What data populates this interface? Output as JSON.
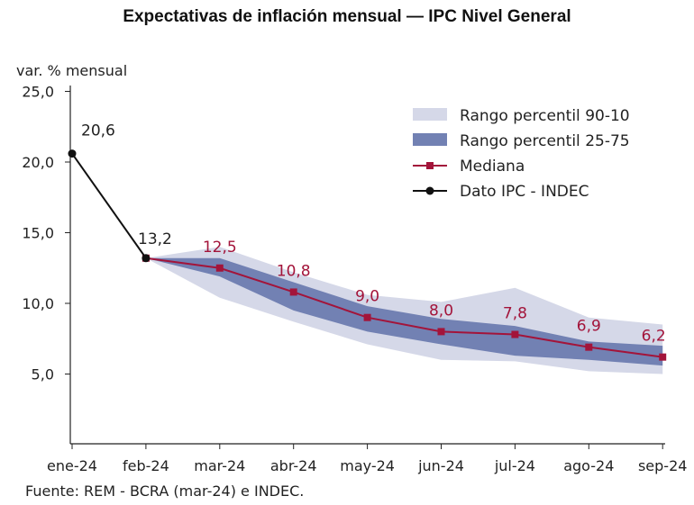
{
  "chart_data": {
    "type": "line",
    "title": "Expectativas de inflación mensual — IPC Nivel General",
    "ylabel": "var. % mensual",
    "xlabel": "",
    "source": "Fuente: REM - BCRA (mar-24) e INDEC.",
    "ylim": [
      0,
      25
    ],
    "yticks": [
      "5,0",
      "10,0",
      "15,0",
      "20,0",
      "25,0"
    ],
    "ytick_values": [
      5,
      10,
      15,
      20,
      25
    ],
    "categories": [
      "ene-24",
      "feb-24",
      "mar-24",
      "abr-24",
      "may-24",
      "jun-24",
      "jul-24",
      "ago-24",
      "sep-24"
    ],
    "grid": false,
    "legend_position": "top-right",
    "colors": {
      "band_90_10": "#d5d8e8",
      "band_25_75": "#7281b3",
      "mediana": "#a3143a",
      "dato": "#111111"
    },
    "series": [
      {
        "name": "Rango percentil 90-10",
        "kind": "band",
        "low": [
          null,
          13.2,
          10.4,
          8.7,
          7.1,
          6.0,
          5.9,
          5.2,
          5.0
        ],
        "high": [
          null,
          13.2,
          14.0,
          12.2,
          10.6,
          10.1,
          11.1,
          9.0,
          8.5
        ]
      },
      {
        "name": "Rango percentil 25-75",
        "kind": "band",
        "low": [
          null,
          13.2,
          11.9,
          9.5,
          8.0,
          7.1,
          6.3,
          6.0,
          5.6
        ],
        "high": [
          null,
          13.2,
          13.2,
          11.5,
          9.8,
          8.9,
          8.4,
          7.3,
          7.0
        ]
      },
      {
        "name": "Mediana",
        "kind": "line",
        "values": [
          null,
          13.2,
          12.5,
          10.8,
          9.0,
          8.0,
          7.8,
          6.9,
          6.2
        ],
        "labels": [
          null,
          null,
          "12,5",
          "10,8",
          "9,0",
          "8,0",
          "7,8",
          "6,9",
          "6,2"
        ]
      },
      {
        "name": "Dato IPC - INDEC",
        "kind": "line",
        "values": [
          20.6,
          13.2,
          null,
          null,
          null,
          null,
          null,
          null,
          null
        ],
        "labels": [
          "20,6",
          "13,2",
          null,
          null,
          null,
          null,
          null,
          null,
          null
        ]
      }
    ]
  }
}
